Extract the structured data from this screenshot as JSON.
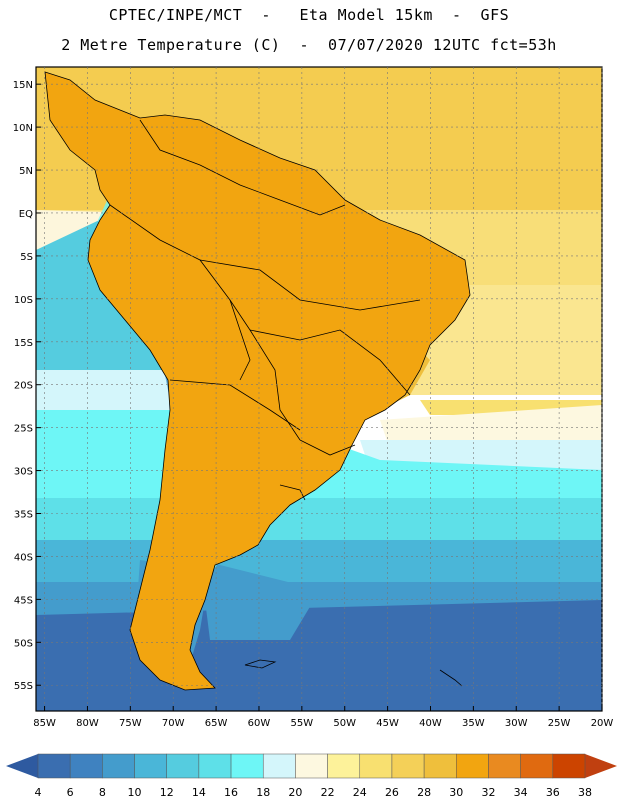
{
  "header": {
    "title_line1": "CPTEC/INPE/MCT  -   Eta Model 15km  -  GFS",
    "title_line2": "2 Metre Temperature (C)  -  07/07/2020 12UTC fct=53h"
  },
  "map": {
    "lat_range": [
      -58,
      17
    ],
    "lon_range": [
      -86,
      -20
    ],
    "lat_ticks": [
      {
        "value": 15,
        "label": "15N"
      },
      {
        "value": 10,
        "label": "10N"
      },
      {
        "value": 5,
        "label": "5N"
      },
      {
        "value": 0,
        "label": "EQ"
      },
      {
        "value": -5,
        "label": "5S"
      },
      {
        "value": -10,
        "label": "10S"
      },
      {
        "value": -15,
        "label": "15S"
      },
      {
        "value": -20,
        "label": "20S"
      },
      {
        "value": -25,
        "label": "25S"
      },
      {
        "value": -30,
        "label": "30S"
      },
      {
        "value": -35,
        "label": "35S"
      },
      {
        "value": -40,
        "label": "40S"
      },
      {
        "value": -45,
        "label": "45S"
      },
      {
        "value": -50,
        "label": "50S"
      },
      {
        "value": -55,
        "label": "55S"
      }
    ],
    "lon_ticks": [
      {
        "value": -85,
        "label": "85W"
      },
      {
        "value": -80,
        "label": "80W"
      },
      {
        "value": -75,
        "label": "75W"
      },
      {
        "value": -70,
        "label": "70W"
      },
      {
        "value": -65,
        "label": "65W"
      },
      {
        "value": -60,
        "label": "60W"
      },
      {
        "value": -55,
        "label": "55W"
      },
      {
        "value": -50,
        "label": "50W"
      },
      {
        "value": -45,
        "label": "45W"
      },
      {
        "value": -40,
        "label": "40W"
      },
      {
        "value": -35,
        "label": "35W"
      },
      {
        "value": -30,
        "label": "30W"
      },
      {
        "value": -25,
        "label": "25W"
      },
      {
        "value": -20,
        "label": "20W"
      }
    ]
  },
  "colorbar": {
    "labels": [
      "4",
      "6",
      "8",
      "10",
      "12",
      "14",
      "16",
      "18",
      "20",
      "22",
      "24",
      "26",
      "28",
      "30",
      "32",
      "34",
      "36",
      "38"
    ],
    "colors": [
      "#3a6eb0",
      "#3f82c0",
      "#449ccc",
      "#4ab6d8",
      "#55ccdf",
      "#5ee0e8",
      "#6ef6f6",
      "#d4f6fb",
      "#fdf8e0",
      "#fdf29a",
      "#f8e070",
      "#f4d058",
      "#efbf3c",
      "#f2a510",
      "#e98a20",
      "#e06a10",
      "#cc4400"
    ],
    "low_color": "#2e5aa0",
    "high_color": "#c04010"
  }
}
